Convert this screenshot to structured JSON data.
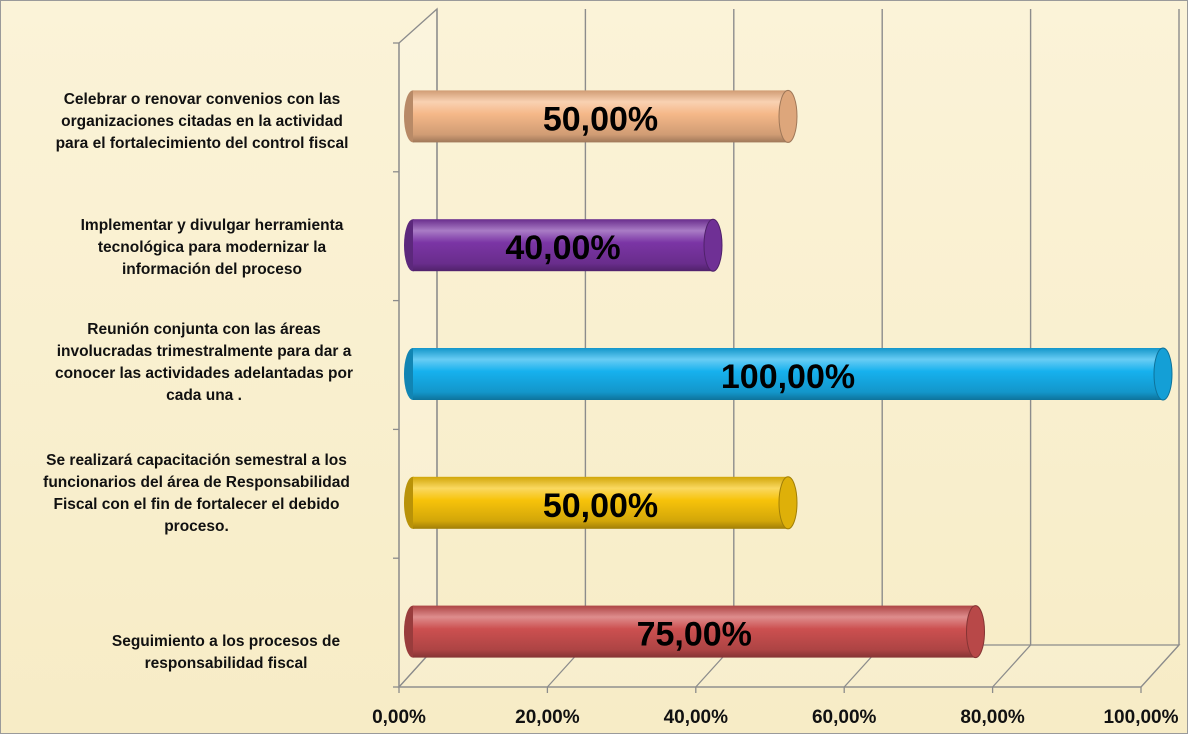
{
  "chart_data": {
    "type": "bar",
    "orientation": "horizontal",
    "style": "3d-cylinder",
    "categories": [
      "Celebrar o renovar convenios con las organizaciones  citadas en la actividad para el fortalecimiento del control fiscal",
      "Implementar y divulgar herramienta tecnológica para modernizar la información del proceso",
      "Reunión conjunta con las áreas involucradas trimestralmente para dar a conocer las actividades adelantadas por cada una .",
      "Se realizará capacitación semestral a los funcionarios del área de Responsabilidad Fiscal con el fin de fortalecer el debido proceso.",
      "Seguimiento a los procesos de responsabilidad fiscal"
    ],
    "category_lines": [
      [
        "Celebrar o renovar convenios con las",
        "organizaciones  citadas en la actividad",
        "para el fortalecimiento del control fiscal"
      ],
      [
        "Implementar y divulgar herramienta",
        "tecnológica para modernizar la",
        "información del proceso"
      ],
      [
        "Reunión conjunta con las áreas",
        "involucradas trimestralmente para dar a",
        "conocer las actividades adelantadas por",
        "cada una ."
      ],
      [
        "Se realizará capacitación semestral a los",
        "funcionarios del área de Responsabilidad",
        "Fiscal con el fin de fortalecer el debido",
        "proceso."
      ],
      [
        "Seguimiento a los procesos de",
        "responsabilidad fiscal"
      ]
    ],
    "values": [
      50,
      40,
      100,
      50,
      75
    ],
    "data_labels": [
      "50,00%",
      "40,00%",
      "100,00%",
      "50,00%",
      "75,00%"
    ],
    "colors": [
      "#f5b889",
      "#7b35a5",
      "#16b1ee",
      "#f7c30a",
      "#cc5050"
    ],
    "x_ticks": [
      "0,00%",
      "20,00%",
      "40,00%",
      "60,00%",
      "80,00%",
      "100,00%"
    ],
    "xlim": [
      0,
      100
    ],
    "grid": true,
    "legend": "none",
    "title": "",
    "xlabel": "",
    "ylabel": ""
  }
}
